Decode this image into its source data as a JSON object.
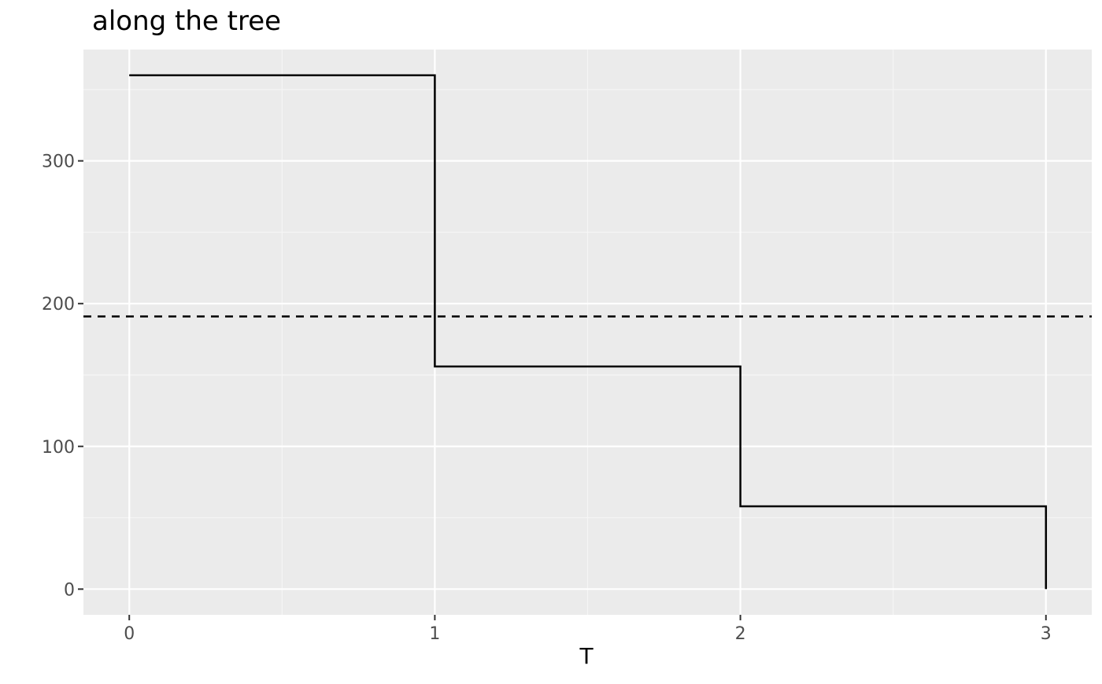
{
  "chart_data": {
    "type": "line",
    "title": "along the tree",
    "xlabel": "T",
    "ylabel": "",
    "xlim": [
      -0.15,
      3.15
    ],
    "ylim": [
      -18,
      378
    ],
    "x_ticks": [
      0,
      1,
      2,
      3
    ],
    "x_tick_labels": [
      "0",
      "1",
      "2",
      "3"
    ],
    "y_ticks": [
      0,
      100,
      200,
      300
    ],
    "y_tick_labels": [
      "0",
      "100",
      "200",
      "300"
    ],
    "grid": true,
    "series": [
      {
        "style": "step",
        "color": "#000000",
        "points": [
          [
            0,
            360
          ],
          [
            1,
            360
          ],
          [
            1,
            156
          ],
          [
            2,
            156
          ],
          [
            2,
            58
          ],
          [
            3,
            58
          ],
          [
            3,
            0
          ]
        ]
      }
    ],
    "reference_lines": [
      {
        "orientation": "horizontal",
        "y": 191,
        "style": "dashed",
        "color": "#000000"
      }
    ],
    "colors": {
      "panel_background": "#EBEBEB",
      "grid_major": "#FFFFFF",
      "grid_minor": "#F5F5F5",
      "tick_label": "#4D4D4D"
    }
  }
}
